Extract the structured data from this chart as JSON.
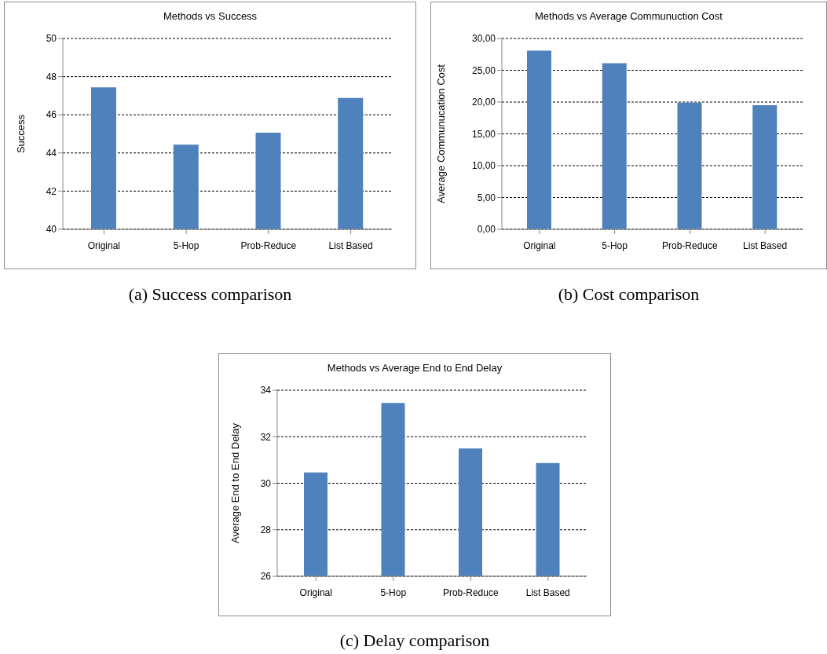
{
  "chart_data": [
    {
      "type": "bar",
      "title": "Methods vs Success",
      "ylabel": "Success",
      "categories": [
        "Original",
        "5-Hop",
        "Prob-Reduce",
        "List Based"
      ],
      "values": [
        47.44,
        44.43,
        45.06,
        46.88
      ],
      "color": "#4f81bd",
      "ylim": [
        40,
        50
      ],
      "yticks": [
        40,
        42,
        44,
        46,
        48,
        50
      ],
      "grid": "y",
      "annotations": [
        "(a) Success comparison"
      ]
    },
    {
      "type": "bar",
      "title": "Methods vs Average Communuction Cost",
      "ylabel": "Average Communucation Cost",
      "categories": [
        "Original",
        "5-Hop",
        "Prob-Reduce",
        "List Based"
      ],
      "values": [
        28.1,
        26.1,
        19.9,
        19.5
      ],
      "color": "#4f81bd",
      "ylim": [
        0,
        30
      ],
      "yticks": [
        {
          "value": 0,
          "label": "0,00"
        },
        {
          "value": 5,
          "label": "5,00"
        },
        {
          "value": 10,
          "label": "10,00"
        },
        {
          "value": 15,
          "label": "15,00"
        },
        {
          "value": 20,
          "label": "20,00"
        },
        {
          "value": 25,
          "label": "25,00"
        },
        {
          "value": 30,
          "label": "30,00"
        }
      ],
      "grid": "y",
      "annotations": [
        "(b) Cost comparison"
      ]
    },
    {
      "type": "bar",
      "title": "Methods vs Average End to End Delay",
      "ylabel": "Average End to End Delay",
      "categories": [
        "Original",
        "5-Hop",
        "Prob-Reduce",
        "List Based"
      ],
      "values": [
        30.46,
        33.45,
        31.49,
        30.87
      ],
      "color": "#4f81bd",
      "ylim": [
        26,
        34
      ],
      "yticks": [
        26,
        28,
        30,
        32,
        34
      ],
      "grid": "y",
      "annotations": [
        "(c) Delay comparison"
      ]
    }
  ]
}
